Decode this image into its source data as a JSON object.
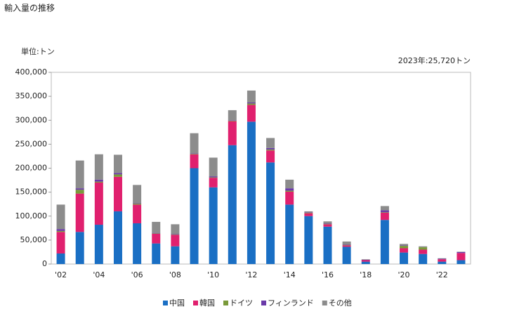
{
  "chart_data": {
    "type": "stacked_bar",
    "title": "輸入量の推移",
    "y_label": "単位:トン",
    "annotation": "2023年:25,720トン",
    "categories": [
      "'02",
      null,
      "'04",
      null,
      "'06",
      null,
      "'08",
      null,
      "'10",
      null,
      "'12",
      null,
      "'14",
      null,
      "'16",
      null,
      "'18",
      null,
      "'20",
      null,
      "'22",
      null
    ],
    "series": [
      {
        "name": "中国",
        "color": "#1a6fc4",
        "values": [
          22000,
          67000,
          82000,
          110000,
          85000,
          43000,
          37000,
          200000,
          160000,
          248000,
          297000,
          212000,
          124000,
          100000,
          78000,
          36000,
          5000,
          92000,
          24000,
          21000,
          5000,
          8000
        ]
      },
      {
        "name": "韓国",
        "color": "#e0206e",
        "values": [
          45000,
          80000,
          88000,
          72000,
          39000,
          20000,
          24000,
          29000,
          20000,
          50000,
          35000,
          25000,
          27000,
          6000,
          5000,
          3000,
          3000,
          15000,
          9000,
          9000,
          5000,
          15000
        ]
      },
      {
        "name": "ドイツ",
        "color": "#7a9a3a",
        "values": [
          2000,
          8000,
          2000,
          5000,
          2000,
          1000,
          1000,
          1000,
          1000,
          1000,
          3000,
          2000,
          2000,
          1000,
          1000,
          1000,
          0,
          1000,
          5000,
          5000,
          0,
          0
        ]
      },
      {
        "name": "フィンランド",
        "color": "#6a3aa8",
        "values": [
          4000,
          3000,
          4000,
          3000,
          1000,
          1000,
          1000,
          1000,
          2000,
          1000,
          2000,
          3000,
          5000,
          1000,
          1000,
          1000,
          1000,
          4000,
          1000,
          0,
          1000,
          2000
        ]
      },
      {
        "name": "その他",
        "color": "#8c8c8c",
        "values": [
          51000,
          58000,
          53000,
          38000,
          38000,
          23000,
          20000,
          42000,
          39000,
          21000,
          25000,
          21000,
          18000,
          2000,
          4000,
          6000,
          1000,
          9000,
          3000,
          2000,
          1000,
          720
        ]
      }
    ],
    "ylim": [
      0,
      400000
    ],
    "yticks": [
      0,
      {
        "value": 50000,
        "label": "50,000"
      },
      {
        "value": 100000,
        "label": "100,000"
      },
      {
        "value": 150000,
        "label": "150,000"
      },
      {
        "value": 200000,
        "label": "200,000"
      },
      {
        "value": 250000,
        "label": "250,000"
      },
      {
        "value": 300000,
        "label": "300,000"
      },
      {
        "value": 350000,
        "label": "350,000"
      },
      {
        "value": 400000,
        "label": "400,000"
      }
    ]
  }
}
